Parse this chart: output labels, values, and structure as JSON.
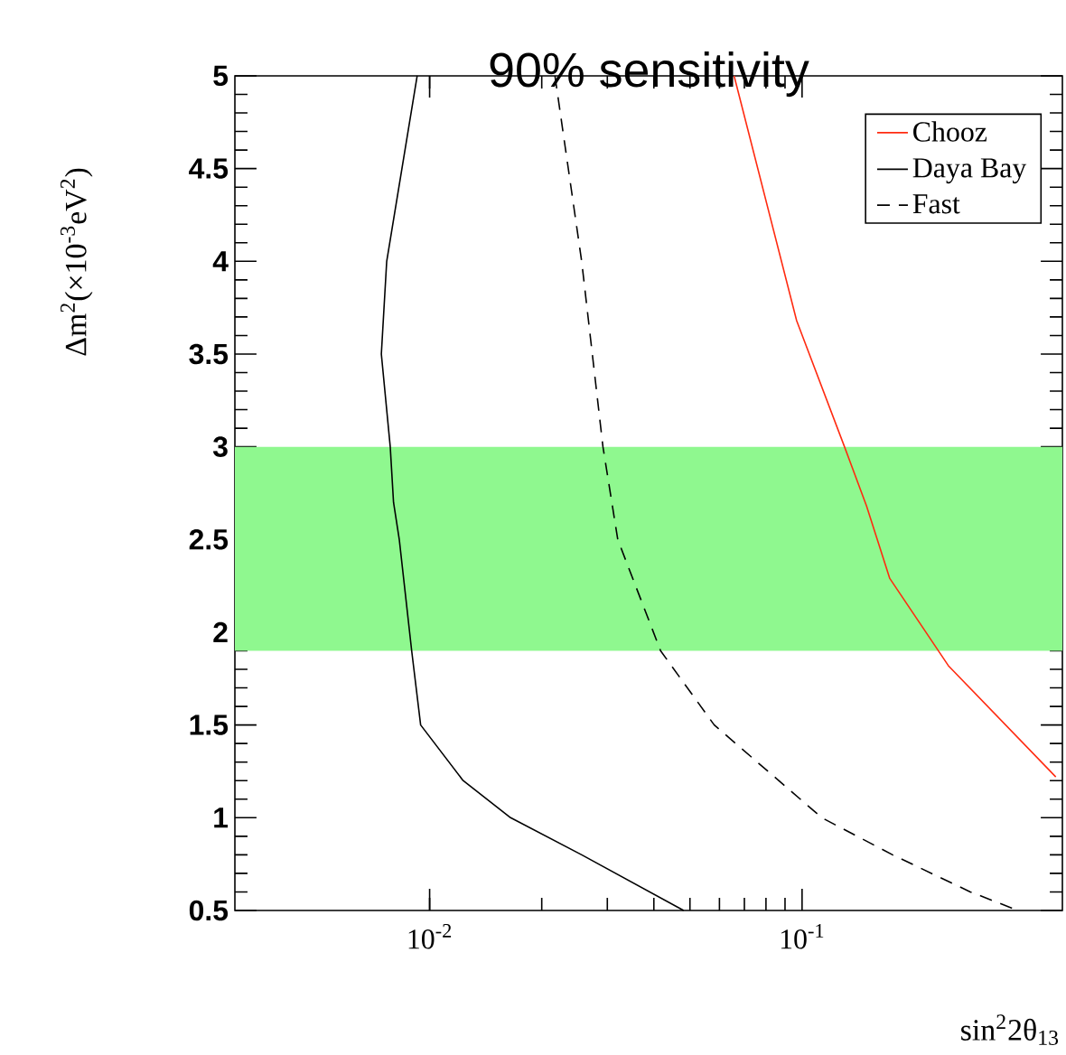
{
  "chart_data": {
    "type": "line",
    "title": "90% sensitivity",
    "xlabel": "sin$^{2}$2θ$_{13}$",
    "ylabel": "Δm$^{2}$(×10$^{-3}$eV$^{2}$)",
    "log": "x",
    "xlim": [
      0.003,
      0.5
    ],
    "ylim": [
      0.5,
      5
    ],
    "xticks": [
      {
        "value": 0.01,
        "label": "10$^{-2}$"
      },
      {
        "value": 0.1,
        "label": "10$^{-1}$"
      }
    ],
    "yticks": [
      0.5,
      1,
      1.5,
      2,
      2.5,
      3,
      3.5,
      4,
      4.5,
      5
    ],
    "legend": "top right",
    "grid": false,
    "bands": [
      {
        "axis": "y",
        "from": 1.9,
        "to": 3,
        "color": "#8ff88f"
      }
    ],
    "series": [
      {
        "name": "Chooz",
        "color": "#ff2a10",
        "line_style": "solid",
        "x": [
          0.0657,
          0.0967,
          0.13,
          0.149,
          0.172,
          0.247,
          0.48
        ],
        "values": [
          5,
          3.68,
          3,
          2.68,
          2.29,
          1.82,
          1.22
        ]
      },
      {
        "name": "Daya Bay",
        "color": "#000000",
        "line_style": "solid",
        "x": [
          0.00926,
          0.00767,
          0.00742,
          0.00784,
          0.008,
          0.00829,
          0.00895,
          0.00946,
          0.0123,
          0.0165,
          0.0256,
          0.0481
        ],
        "values": [
          5,
          4,
          3.5,
          3,
          2.7,
          2.5,
          1.9,
          1.5,
          1.2,
          1,
          0.8,
          0.5
        ]
      },
      {
        "name": "Fast",
        "color": "#000000",
        "line_style": "dashed",
        "x": [
          0.0217,
          0.0256,
          0.0292,
          0.032,
          0.0417,
          0.0581,
          0.113,
          0.175,
          0.283,
          0.38
        ],
        "values": [
          5,
          4,
          3,
          2.5,
          1.9,
          1.5,
          1,
          0.8,
          0.6,
          0.5
        ]
      }
    ]
  }
}
